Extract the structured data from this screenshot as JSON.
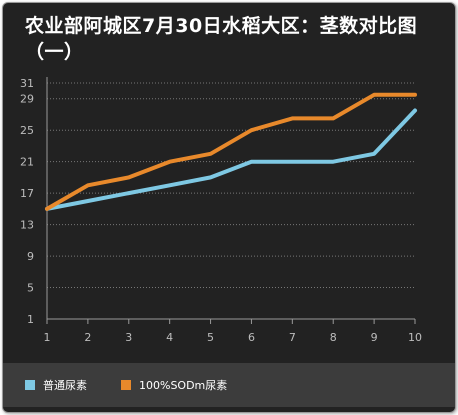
{
  "chart_data": {
    "type": "line",
    "title": "农业部阿城区7月30日水稻大区：茎数对比图（一）",
    "x": [
      1,
      2,
      3,
      4,
      5,
      6,
      7,
      8,
      9,
      10
    ],
    "y_ticks": [
      1,
      5,
      9,
      13,
      17,
      21,
      25,
      29,
      31
    ],
    "ylim": [
      1,
      31
    ],
    "grid": true,
    "legend_position": "bottom-left",
    "series": [
      {
        "name": "普通尿素",
        "color": "#7ec8e3",
        "values": [
          15,
          16,
          17,
          18,
          19,
          21,
          21,
          21,
          22,
          27.5
        ]
      },
      {
        "name": "100%SODm尿素",
        "color": "#e8892b",
        "values": [
          15,
          18,
          19,
          21,
          22,
          25,
          26.5,
          26.5,
          29.5,
          29.5
        ]
      }
    ]
  }
}
